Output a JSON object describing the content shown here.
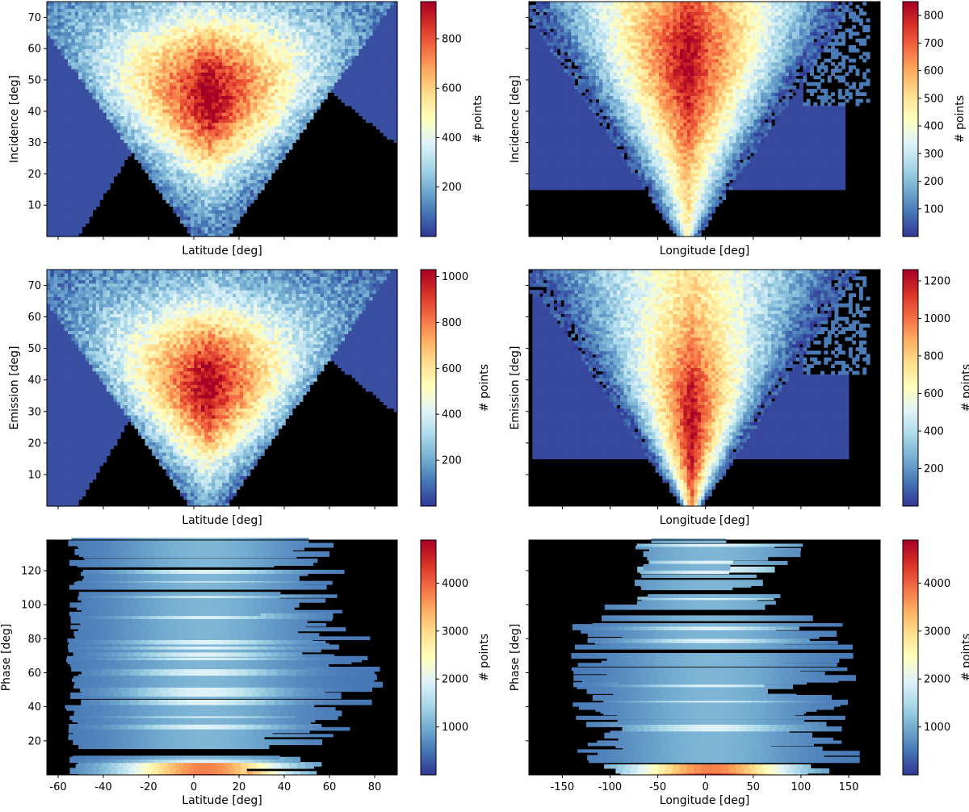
{
  "colorbar_label": "# points",
  "colormap": [
    "#313695",
    "#4575b4",
    "#74add1",
    "#abd9e9",
    "#e0f3f8",
    "#ffffbf",
    "#fee090",
    "#fdae61",
    "#f46d43",
    "#d73027",
    "#a50026"
  ],
  "background_color": "#000000",
  "chart_data": [
    {
      "type": "heatmap",
      "xlabel": "Latitude [deg]",
      "ylabel": "Incidence [deg]",
      "xlim": [
        -65,
        90
      ],
      "ylim": [
        0,
        75
      ],
      "xticks": [],
      "yticks": [
        10,
        20,
        30,
        40,
        50,
        60,
        70
      ],
      "colorbar": {
        "min": 0,
        "max": 950,
        "ticks": [
          200,
          400,
          600,
          800
        ]
      },
      "pattern": "v-latitude",
      "peak_x": 2,
      "peak_y": 45
    },
    {
      "type": "heatmap",
      "xlabel": "Longitude [deg]",
      "ylabel": "Incidence [deg]",
      "xlim": [
        -185,
        183
      ],
      "ylim": [
        0,
        75
      ],
      "xticks": [],
      "yticks": [],
      "colorbar": {
        "min": 0,
        "max": 850,
        "ticks": [
          100,
          200,
          300,
          400,
          500,
          600,
          700,
          800
        ]
      },
      "pattern": "v-longitude",
      "peak_x": -20,
      "peak_y": 55
    },
    {
      "type": "heatmap",
      "xlabel": "Latitude [deg]",
      "ylabel": "Emission [deg]",
      "xlim": [
        -65,
        90
      ],
      "ylim": [
        0,
        75
      ],
      "xticks": [],
      "yticks": [
        10,
        20,
        30,
        40,
        50,
        60,
        70
      ],
      "colorbar": {
        "min": 0,
        "max": 1030,
        "ticks": [
          200,
          400,
          600,
          800,
          1000
        ]
      },
      "pattern": "v-latitude",
      "peak_x": 0,
      "peak_y": 38
    },
    {
      "type": "heatmap",
      "xlabel": "Longitude [deg]",
      "ylabel": "Emission [deg]",
      "xlim": [
        -185,
        183
      ],
      "ylim": [
        0,
        75
      ],
      "xticks": [],
      "yticks": [],
      "colorbar": {
        "min": 0,
        "max": 1260,
        "ticks": [
          200,
          400,
          600,
          800,
          1000,
          1200
        ]
      },
      "pattern": "v-longitude",
      "peak_x": -15,
      "peak_y": 25
    },
    {
      "type": "heatmap",
      "xlabel": "Latitude [deg]",
      "ylabel": "Phase [deg]",
      "xlim": [
        -65,
        90
      ],
      "ylim": [
        0,
        138
      ],
      "xticks": [
        -60,
        -40,
        -20,
        0,
        20,
        40,
        60,
        80
      ],
      "yticks": [
        20,
        40,
        60,
        80,
        100,
        120
      ],
      "colorbar": {
        "min": 0,
        "max": 4900,
        "ticks": [
          1000,
          2000,
          3000,
          4000
        ]
      },
      "pattern": "bands-latitude"
    },
    {
      "type": "heatmap",
      "xlabel": "Longitude [deg]",
      "ylabel": "Phase [deg]",
      "xlim": [
        -185,
        183
      ],
      "ylim": [
        0,
        138
      ],
      "xticks": [
        -150,
        -100,
        -50,
        0,
        50,
        100,
        150
      ],
      "yticks": [],
      "colorbar": {
        "min": 0,
        "max": 4900,
        "ticks": [
          1000,
          2000,
          3000,
          4000
        ]
      },
      "pattern": "bands-longitude"
    }
  ]
}
